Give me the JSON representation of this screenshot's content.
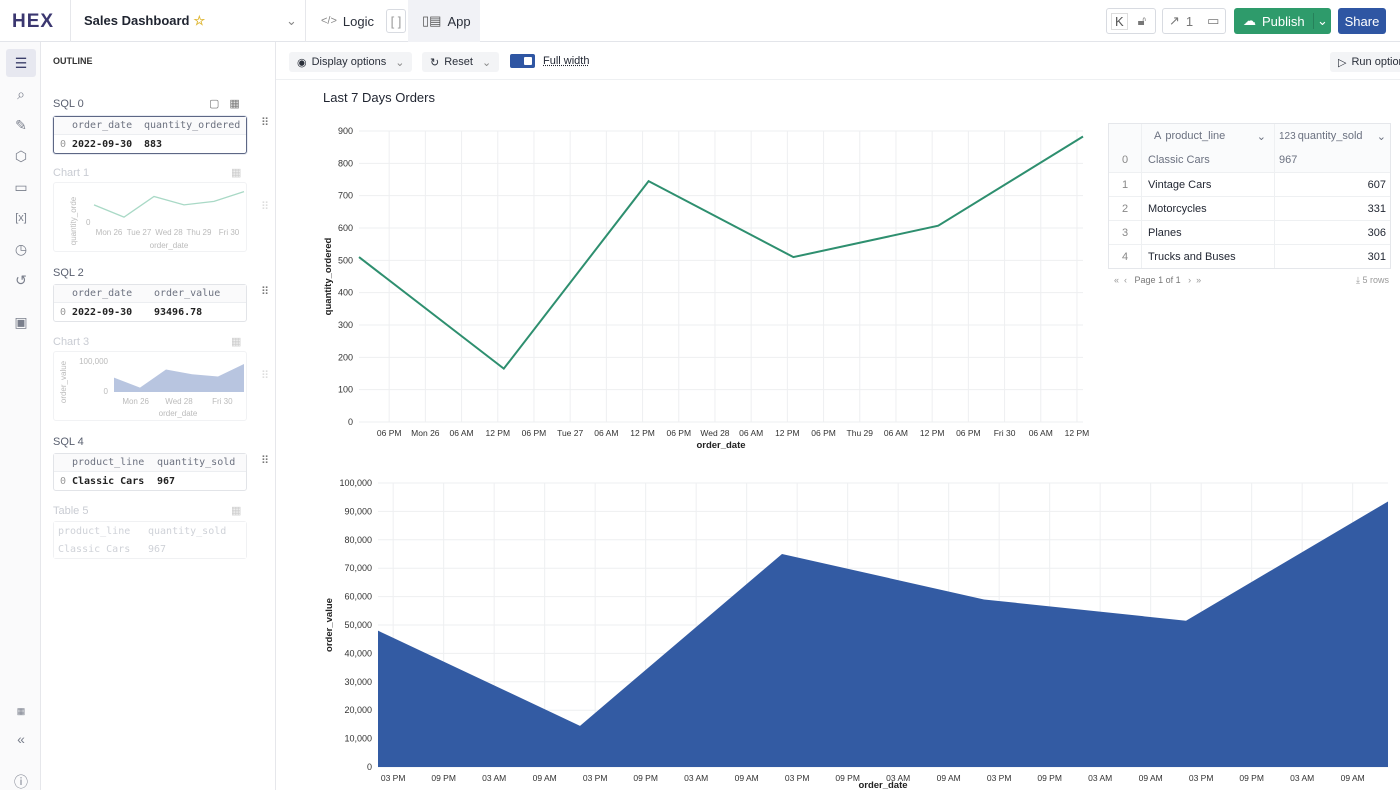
{
  "app": {
    "logo": "HEX",
    "title": "Sales Dashboard"
  },
  "topbar": {
    "logic_label": "Logic",
    "app_label": "App",
    "shortcut_key": "K",
    "version_count": "1",
    "publish_label": "Publish",
    "share_label": "Share"
  },
  "toolbar": {
    "display_options": "Display options",
    "reset": "Reset",
    "full_width": "Full width",
    "full_width_on": true,
    "run_options": "Run options"
  },
  "outline": {
    "header": "OUTLINE",
    "cells": [
      {
        "label": "SQL 0",
        "columns": [
          "order_date",
          "quantity_ordered"
        ],
        "row": [
          "0",
          "2022-09-30",
          "883"
        ]
      },
      {
        "label": "Chart 1",
        "ylabel": "quantity_orde",
        "ytick": "0",
        "xticks": [
          "Mon 26",
          "Tue 27",
          "Wed 28",
          "Thu 29",
          "Fri 30"
        ],
        "xlabel": "order_date"
      },
      {
        "label": "SQL 2",
        "columns": [
          "order_date",
          "order_value"
        ],
        "row": [
          "0",
          "2022-09-30",
          "93496.78"
        ]
      },
      {
        "label": "Chart 3",
        "ylabel": "order_value",
        "yticks": [
          "100,000",
          "0"
        ],
        "xticks": [
          "Mon 26",
          "Wed 28",
          "Fri 30"
        ],
        "xlabel": "order_date"
      },
      {
        "label": "SQL 4",
        "columns": [
          "product_line",
          "quantity_sold"
        ],
        "row": [
          "0",
          "Classic Cars",
          "967"
        ]
      },
      {
        "label": "Table 5",
        "columns": [
          "product_line",
          "quantity_sold"
        ],
        "row": [
          "Classic Cars",
          "967"
        ]
      }
    ]
  },
  "main": {
    "title": "Last 7 Days Orders",
    "table": {
      "columns": [
        {
          "type_icon": "A",
          "name": "product_line"
        },
        {
          "type_icon": "123",
          "name": "quantity_sold"
        }
      ],
      "rows": [
        [
          "0",
          "Classic Cars",
          "967"
        ],
        [
          "1",
          "Vintage Cars",
          "607"
        ],
        [
          "2",
          "Motorcycles",
          "331"
        ],
        [
          "3",
          "Planes",
          "306"
        ],
        [
          "4",
          "Trucks and Buses",
          "301"
        ]
      ],
      "pager": "Page 1 of 1",
      "row_count": "5 rows"
    }
  },
  "chart_data": [
    {
      "type": "line",
      "color": "#2e8f6f",
      "xlabel": "order_date",
      "ylabel": "quantity_ordered",
      "ylim": [
        0,
        900
      ],
      "grid": true,
      "yticks": [
        "0",
        "100",
        "200",
        "300",
        "400",
        "500",
        "600",
        "700",
        "800",
        "900"
      ],
      "xticks": [
        "06 PM",
        "Mon 26",
        "06 AM",
        "12 PM",
        "06 PM",
        "Tue 27",
        "06 AM",
        "12 PM",
        "06 PM",
        "Wed 28",
        "06 AM",
        "12 PM",
        "06 PM",
        "Thu 29",
        "06 AM",
        "12 PM",
        "06 PM",
        "Fri 30",
        "06 AM",
        "12 PM"
      ],
      "x": [
        "2022-09-25",
        "2022-09-26",
        "2022-09-27",
        "2022-09-28",
        "2022-09-29",
        "2022-09-30"
      ],
      "values": [
        510,
        165,
        745,
        510,
        607,
        883
      ]
    },
    {
      "type": "area",
      "color": "#335ba3",
      "xlabel": "order_date",
      "ylabel": "order_value",
      "ylim": [
        0,
        100000
      ],
      "grid": true,
      "yticks": [
        "0",
        "10,000",
        "20,000",
        "30,000",
        "40,000",
        "50,000",
        "60,000",
        "70,000",
        "80,000",
        "90,000",
        "100,000"
      ],
      "xticks": [
        "03 PM",
        "09 PM",
        "03 AM",
        "09 AM",
        "03 PM",
        "09 PM",
        "03 AM",
        "09 AM",
        "03 PM",
        "09 PM",
        "03 AM",
        "09 AM",
        "03 PM",
        "09 PM",
        "03 AM",
        "09 AM",
        "03 PM",
        "09 PM",
        "03 AM",
        "09 AM"
      ],
      "x": [
        "2022-09-25",
        "2022-09-26",
        "2022-09-27",
        "2022-09-28",
        "2022-09-29",
        "2022-09-30"
      ],
      "values": [
        48000,
        14500,
        75000,
        59000,
        51500,
        93496.78
      ]
    }
  ]
}
